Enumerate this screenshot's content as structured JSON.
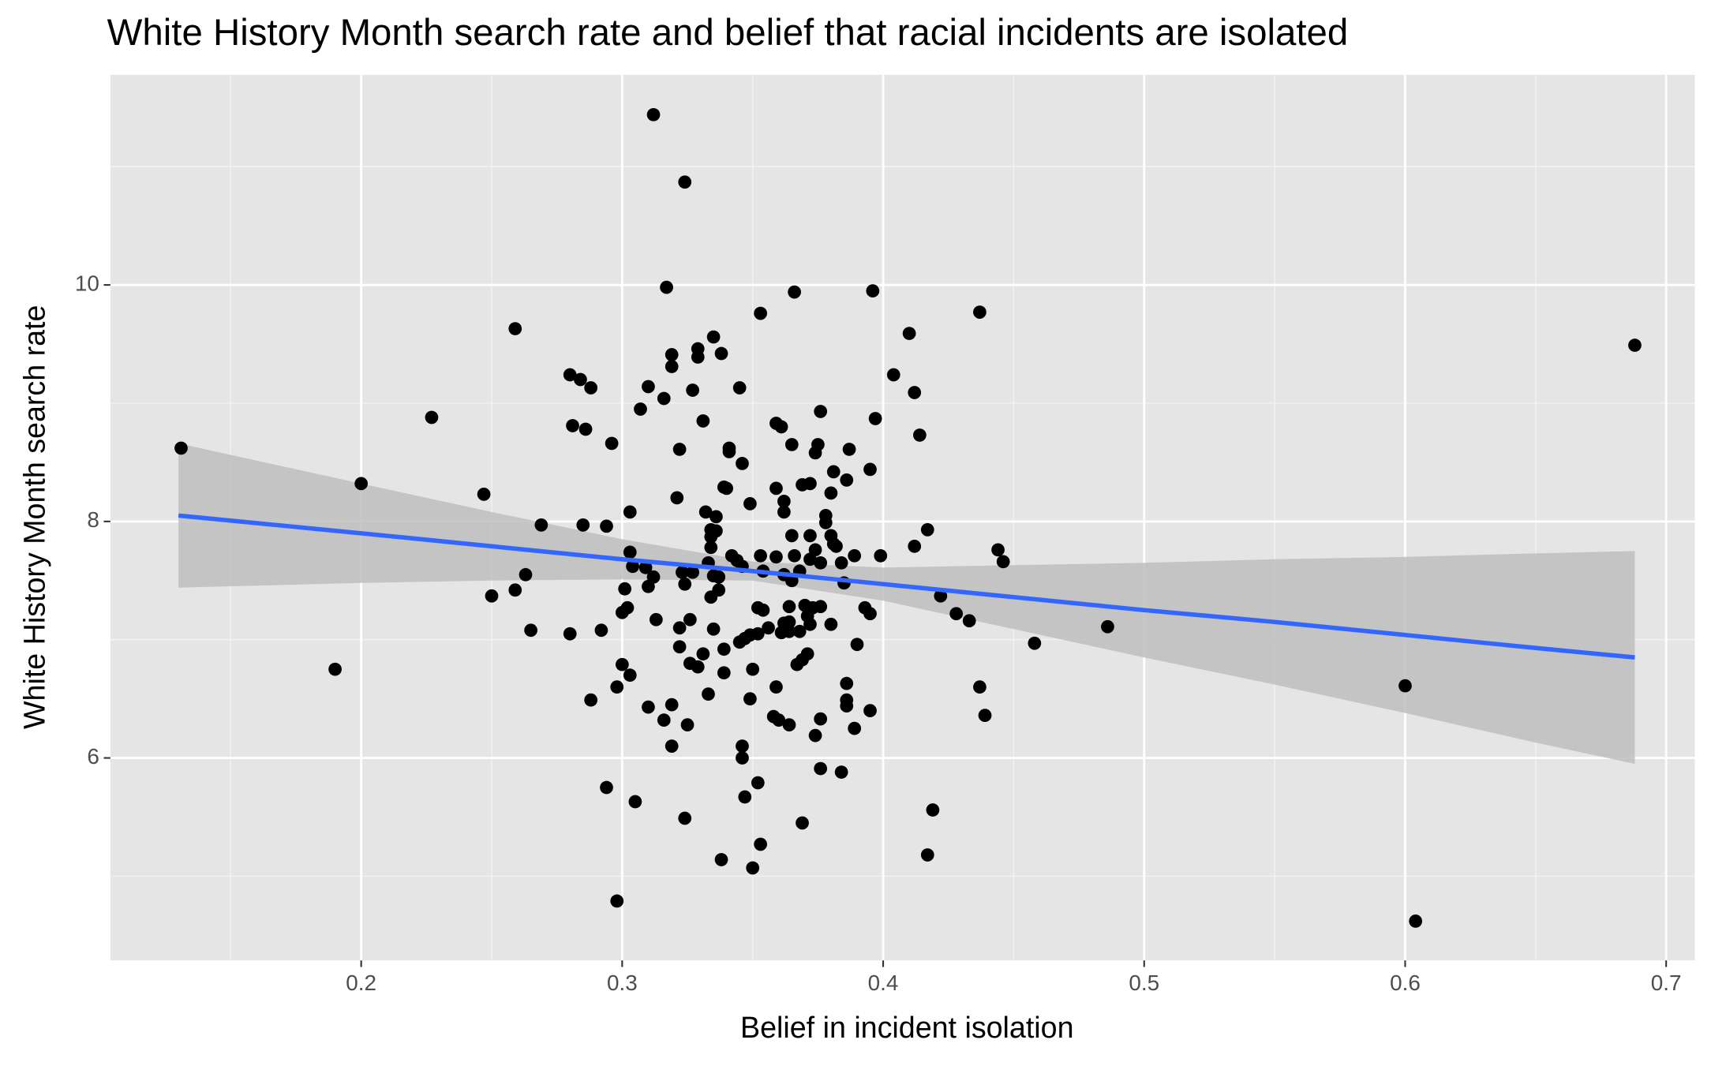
{
  "chart_data": {
    "type": "scatter",
    "title": "White History Month search rate and belief that racial incidents are isolated",
    "x_label": "Belief in incident isolation",
    "y_label": "White History Month search rate",
    "xlim": [
      0.1039,
      0.711
    ],
    "ylim": [
      4.288,
      11.777
    ],
    "xticks": [
      0.2,
      0.3,
      0.4,
      0.5,
      0.6,
      0.7
    ],
    "yticks": [
      6,
      8,
      10
    ],
    "x_minor_ticks": [
      0.15,
      0.25,
      0.35,
      0.45,
      0.55,
      0.65
    ],
    "y_minor_ticks": [
      5,
      7,
      9,
      11
    ],
    "grid": true,
    "color": "#000000",
    "x": [
      0.312,
      0.324,
      0.317,
      0.366,
      0.396,
      0.259,
      0.335,
      0.353,
      0.437,
      0.41,
      0.688,
      0.319,
      0.329,
      0.338,
      0.319,
      0.329,
      0.28,
      0.284,
      0.288,
      0.31,
      0.327,
      0.345,
      0.404,
      0.412,
      0.316,
      0.307,
      0.227,
      0.331,
      0.376,
      0.397,
      0.281,
      0.286,
      0.359,
      0.361,
      0.414,
      0.131,
      0.296,
      0.375,
      0.365,
      0.322,
      0.341,
      0.387,
      0.341,
      0.374,
      0.346,
      0.381,
      0.395,
      0.386,
      0.372,
      0.369,
      0.2,
      0.339,
      0.34,
      0.359,
      0.38,
      0.247,
      0.321,
      0.362,
      0.349,
      0.303,
      0.332,
      0.362,
      0.378,
      0.336,
      0.378,
      0.269,
      0.285,
      0.294,
      0.334,
      0.336,
      0.417,
      0.365,
      0.372,
      0.38,
      0.334,
      0.381,
      0.334,
      0.382,
      0.412,
      0.444,
      0.303,
      0.374,
      0.342,
      0.353,
      0.359,
      0.366,
      0.389,
      0.399,
      0.372,
      0.333,
      0.344,
      0.376,
      0.384,
      0.446,
      0.304,
      0.309,
      0.346,
      0.354,
      0.368,
      0.323,
      0.327,
      0.335,
      0.362,
      0.263,
      0.312,
      0.337,
      0.365,
      0.385,
      0.324,
      0.301,
      0.31,
      0.259,
      0.337,
      0.334,
      0.25,
      0.422,
      0.37,
      0.364,
      0.376,
      0.393,
      0.302,
      0.352,
      0.354,
      0.373,
      0.3,
      0.395,
      0.428,
      0.371,
      0.433,
      0.313,
      0.326,
      0.372,
      0.362,
      0.364,
      0.38,
      0.322,
      0.356,
      0.486,
      0.292,
      0.265,
      0.335,
      0.364,
      0.361,
      0.368,
      0.28,
      0.349,
      0.352,
      0.347,
      0.345,
      0.458,
      0.39,
      0.322,
      0.339,
      0.331,
      0.371,
      0.369,
      0.326,
      0.367,
      0.3,
      0.329,
      0.35,
      0.19,
      0.303,
      0.339,
      0.386,
      0.298,
      0.359,
      0.437,
      0.6,
      0.333,
      0.349,
      0.288,
      0.386,
      0.386,
      0.31,
      0.319,
      0.395,
      0.358,
      0.439,
      0.376,
      0.36,
      0.316,
      0.364,
      0.325,
      0.389,
      0.374,
      0.319,
      0.346,
      0.346,
      0.376,
      0.384,
      0.352,
      0.294,
      0.347,
      0.305,
      0.419,
      0.324,
      0.369,
      0.353,
      0.417,
      0.338,
      0.35,
      0.298,
      0.604
    ],
    "values": [
      11.44,
      10.87,
      9.98,
      9.94,
      9.95,
      9.63,
      9.56,
      9.76,
      9.77,
      9.59,
      9.49,
      9.41,
      9.46,
      9.42,
      9.31,
      9.39,
      9.24,
      9.2,
      9.13,
      9.14,
      9.11,
      9.13,
      9.24,
      9.09,
      9.04,
      8.95,
      8.88,
      8.85,
      8.93,
      8.87,
      8.81,
      8.78,
      8.83,
      8.8,
      8.73,
      8.62,
      8.66,
      8.65,
      8.65,
      8.61,
      8.62,
      8.61,
      8.59,
      8.58,
      8.49,
      8.42,
      8.44,
      8.35,
      8.32,
      8.31,
      8.32,
      8.29,
      8.28,
      8.28,
      8.24,
      8.23,
      8.2,
      8.17,
      8.15,
      8.08,
      8.08,
      8.08,
      8.05,
      8.04,
      7.99,
      7.97,
      7.97,
      7.96,
      7.93,
      7.92,
      7.93,
      7.88,
      7.88,
      7.88,
      7.87,
      7.81,
      7.78,
      7.79,
      7.79,
      7.76,
      7.74,
      7.76,
      7.71,
      7.71,
      7.7,
      7.71,
      7.71,
      7.71,
      7.68,
      7.65,
      7.67,
      7.65,
      7.65,
      7.66,
      7.62,
      7.61,
      7.62,
      7.58,
      7.58,
      7.57,
      7.57,
      7.54,
      7.55,
      7.55,
      7.53,
      7.53,
      7.5,
      7.48,
      7.47,
      7.43,
      7.45,
      7.42,
      7.42,
      7.36,
      7.37,
      7.37,
      7.29,
      7.28,
      7.28,
      7.27,
      7.27,
      7.27,
      7.25,
      7.27,
      7.23,
      7.22,
      7.22,
      7.2,
      7.16,
      7.17,
      7.17,
      7.13,
      7.14,
      7.15,
      7.13,
      7.1,
      7.1,
      7.11,
      7.08,
      7.08,
      7.09,
      7.07,
      7.06,
      7.07,
      7.05,
      7.04,
      7.05,
      7.01,
      6.98,
      6.97,
      6.96,
      6.94,
      6.92,
      6.88,
      6.88,
      6.83,
      6.8,
      6.79,
      6.79,
      6.77,
      6.75,
      6.75,
      6.7,
      6.72,
      6.63,
      6.6,
      6.6,
      6.6,
      6.61,
      6.54,
      6.5,
      6.49,
      6.49,
      6.44,
      6.43,
      6.45,
      6.4,
      6.35,
      6.36,
      6.33,
      6.32,
      6.32,
      6.28,
      6.28,
      6.25,
      6.19,
      6.1,
      6.1,
      6.0,
      5.91,
      5.88,
      5.79,
      5.75,
      5.67,
      5.63,
      5.56,
      5.49,
      5.45,
      5.27,
      5.18,
      5.14,
      5.07,
      4.79,
      4.62
    ],
    "fit": {
      "color": "#3366ff",
      "band_color": "#bebebe",
      "x": [
        0.13,
        0.2,
        0.25,
        0.3,
        0.35,
        0.4,
        0.45,
        0.5,
        0.55,
        0.6,
        0.65,
        0.688
      ],
      "values": [
        8.05,
        7.9,
        7.79,
        7.68,
        7.58,
        7.47,
        7.36,
        7.25,
        7.15,
        7.04,
        6.93,
        6.85
      ],
      "lower": [
        7.44,
        7.48,
        7.5,
        7.51,
        7.5,
        7.33,
        7.09,
        6.85,
        6.62,
        6.38,
        6.13,
        5.95
      ],
      "upper": [
        8.66,
        8.32,
        8.08,
        7.85,
        7.66,
        7.61,
        7.63,
        7.65,
        7.68,
        7.7,
        7.73,
        7.75
      ]
    }
  }
}
